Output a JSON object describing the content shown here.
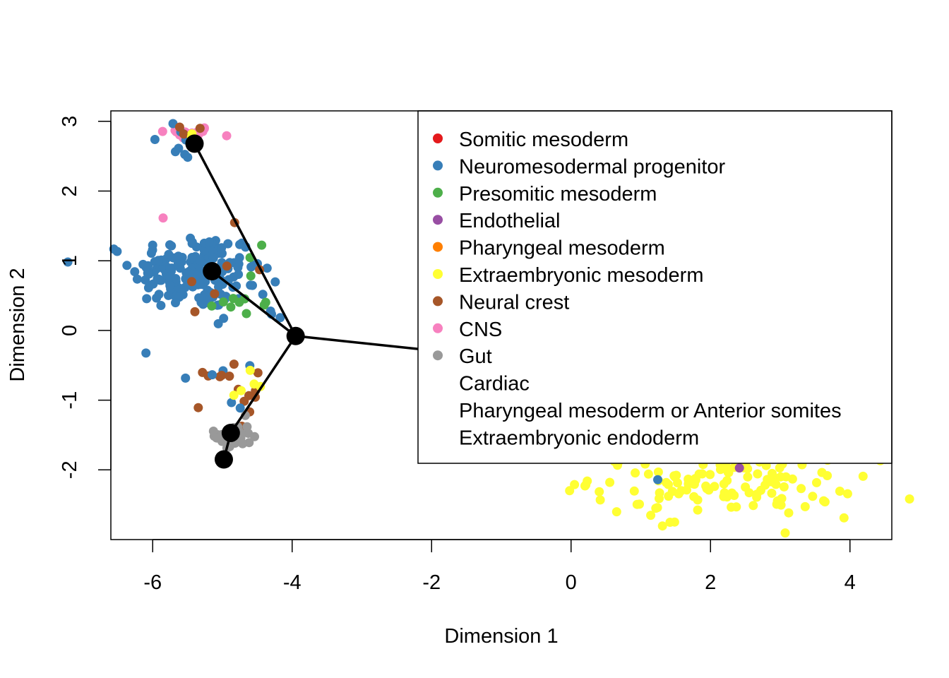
{
  "chart_data": {
    "type": "scatter",
    "title": "",
    "xlabel": "Dimension 1",
    "ylabel": "Dimension 2",
    "xlim": [
      -6.6,
      4.6
    ],
    "ylim": [
      -3.0,
      3.15
    ],
    "xticks": [
      -6,
      -4,
      -2,
      0,
      2,
      4
    ],
    "yticks": [
      -2,
      -1,
      0,
      1,
      2,
      3
    ],
    "xtick_labels": [
      "-6",
      "-4",
      "-2",
      "0",
      "2",
      "4"
    ],
    "ytick_labels": [
      "-2",
      "-1",
      "0",
      "1",
      "2",
      "3"
    ],
    "grid": false,
    "legend_position": "top-right",
    "legend": [
      {
        "label": "Somitic mesoderm",
        "color": "#E41A1C",
        "marker": true
      },
      {
        "label": "Neuromesodermal progenitor",
        "color": "#377EB8",
        "marker": true
      },
      {
        "label": "Presomitic mesoderm",
        "color": "#4DAF4A",
        "marker": true
      },
      {
        "label": "Endothelial",
        "color": "#984EA3",
        "marker": true
      },
      {
        "label": "Pharyngeal mesoderm",
        "color": "#FF7F00",
        "marker": true
      },
      {
        "label": "Extraembryonic mesoderm",
        "color": "#FFFF33",
        "marker": true
      },
      {
        "label": "Neural crest",
        "color": "#A65628",
        "marker": true
      },
      {
        "label": "CNS",
        "color": "#F781BF",
        "marker": true
      },
      {
        "label": "Gut",
        "color": "#999999",
        "marker": true
      },
      {
        "label": "Cardiac",
        "color": "",
        "marker": false
      },
      {
        "label": "Pharyngeal mesoderm or Anterior somites",
        "color": "",
        "marker": false
      },
      {
        "label": "Extraembryonic endoderm",
        "color": "",
        "marker": false
      }
    ],
    "clusters": [
      {
        "name": "CNS cluster top-left",
        "label": "CNS",
        "color": "#F781BF",
        "cx": -5.55,
        "cy": 2.83,
        "sx": 0.22,
        "sy": 0.05,
        "n": 22
      },
      {
        "name": "NMP scatter top-left",
        "label": "Neuromesodermal progenitor",
        "color": "#377EB8",
        "cx": -5.6,
        "cy": 2.65,
        "sx": 0.2,
        "sy": 0.22,
        "n": 8
      },
      {
        "name": "Neural crest top-left",
        "label": "Neural crest",
        "color": "#A65628",
        "cx": -5.6,
        "cy": 2.85,
        "sx": 0.25,
        "sy": 0.05,
        "n": 3
      },
      {
        "name": "Extraembryonic top-left",
        "label": "Extraembryonic mesoderm",
        "color": "#FFFF33",
        "cx": -5.4,
        "cy": 2.82,
        "sx": 0.05,
        "sy": 0.04,
        "n": 2
      },
      {
        "name": "NMP main cluster",
        "label": "Neuromesodermal progenitor",
        "color": "#377EB8",
        "cx": -5.4,
        "cy": 0.85,
        "sx": 0.45,
        "sy": 0.28,
        "n": 170
      },
      {
        "name": "NMP tail",
        "label": "Neuromesodermal progenitor",
        "color": "#377EB8",
        "cx": -4.6,
        "cy": 0.35,
        "sx": 0.25,
        "sy": 0.4,
        "n": 14
      },
      {
        "name": "Presomitic mesoderm",
        "label": "Presomitic mesoderm",
        "color": "#4DAF4A",
        "cx": -4.75,
        "cy": 0.5,
        "sx": 0.35,
        "sy": 0.3,
        "n": 12
      },
      {
        "name": "Neural crest middle",
        "label": "Neural crest",
        "color": "#A65628",
        "cx": -5.1,
        "cy": 0.85,
        "sx": 0.45,
        "sy": 0.3,
        "n": 6
      },
      {
        "name": "Neural crest lower",
        "label": "Neural crest",
        "color": "#A65628",
        "cx": -4.85,
        "cy": -0.9,
        "sx": 0.2,
        "sy": 0.25,
        "n": 16
      },
      {
        "name": "Gut cluster",
        "label": "Gut",
        "color": "#999999",
        "cx": -4.85,
        "cy": -1.5,
        "sx": 0.13,
        "sy": 0.12,
        "n": 34
      },
      {
        "name": "NMP lower",
        "label": "Neuromesodermal progenitor",
        "color": "#377EB8",
        "cx": -4.9,
        "cy": -0.7,
        "sx": 0.25,
        "sy": 0.4,
        "n": 5
      },
      {
        "name": "Extraembryonic lower-left",
        "label": "Extraembryonic mesoderm",
        "color": "#FFFF33",
        "cx": -4.55,
        "cy": -0.85,
        "sx": 0.25,
        "sy": 0.15,
        "n": 5
      },
      {
        "name": "CNS stray",
        "label": "CNS",
        "color": "#F781BF",
        "cx": -5.85,
        "cy": 1.58,
        "sx": 0.02,
        "sy": 0.02,
        "n": 1
      },
      {
        "name": "Extraembryonic main",
        "label": "Extraembryonic mesoderm",
        "color": "#FFFF33",
        "cx": 2.2,
        "cy": -2.1,
        "sx": 0.95,
        "sy": 0.28,
        "n": 170
      },
      {
        "name": "NMP stray right",
        "label": "Neuromesodermal progenitor",
        "color": "#377EB8",
        "cx": 1.25,
        "cy": -2.13,
        "sx": 0.01,
        "sy": 0.01,
        "n": 1
      },
      {
        "name": "Endothelial stray",
        "label": "Endothelial",
        "color": "#984EA3",
        "cx": 2.42,
        "cy": -1.97,
        "sx": 0.01,
        "sy": 0.01,
        "n": 1
      }
    ],
    "trajectory": {
      "nodes": [
        {
          "id": "A",
          "x": -5.4,
          "y": 2.68
        },
        {
          "id": "B",
          "x": -5.15,
          "y": 0.85
        },
        {
          "id": "C",
          "x": -3.95,
          "y": -0.08
        },
        {
          "id": "D",
          "x": -4.88,
          "y": -1.47
        },
        {
          "id": "E",
          "x": -4.98,
          "y": -1.85
        },
        {
          "id": "F",
          "x": 2.4,
          "y": -0.75
        }
      ],
      "edges": [
        [
          "A",
          "C"
        ],
        [
          "B",
          "C"
        ],
        [
          "C",
          "D"
        ],
        [
          "D",
          "E"
        ],
        [
          "C",
          "F"
        ]
      ]
    }
  }
}
